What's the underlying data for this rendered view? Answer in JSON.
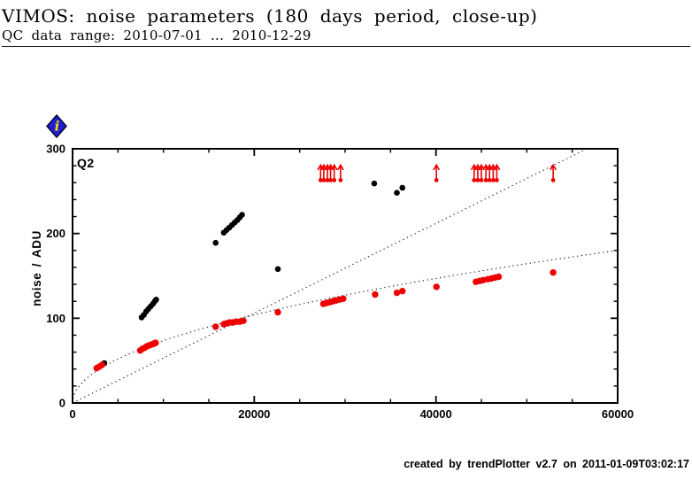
{
  "header": {
    "title": "VIMOS: noise parameters (180 days period, close-up)",
    "subtitle": "QC data range: 2010-07-01 ... 2010-12-29"
  },
  "icons": {
    "info": {
      "glyph": "i",
      "bg": "#2020d0",
      "fg": "#ffdd00"
    }
  },
  "footer": {
    "credit": "created by trendPlotter v2.7 on 2011-01-09T03:02:17"
  },
  "chart_data": {
    "type": "scatter",
    "panel_label": "Q2",
    "xlabel": "",
    "ylabel": "noise / ADU",
    "xlim": [
      0,
      60000
    ],
    "ylim": [
      0,
      300
    ],
    "x_major_ticks": [
      0,
      20000,
      40000,
      60000
    ],
    "x_minor_step": 5000,
    "y_major_ticks": [
      0,
      100,
      200,
      300
    ],
    "y_minor_step": 20,
    "grid": false,
    "colors": {
      "black_series": "#000000",
      "red_series": "#ee0000",
      "model_line": "#1a1a1a"
    },
    "series": [
      {
        "name": "noise-black",
        "color": "#000000",
        "marker": "dot",
        "points": [
          [
            3500,
            47
          ],
          [
            7600,
            101
          ],
          [
            7850,
            104
          ],
          [
            8100,
            108
          ],
          [
            8350,
            111
          ],
          [
            8600,
            114
          ],
          [
            8850,
            117
          ],
          [
            9050,
            120
          ],
          [
            9200,
            122
          ],
          [
            15750,
            189
          ],
          [
            16650,
            201
          ],
          [
            16950,
            204
          ],
          [
            17250,
            207
          ],
          [
            17550,
            210
          ],
          [
            17850,
            213
          ],
          [
            18150,
            216
          ],
          [
            18400,
            219
          ],
          [
            18650,
            222
          ],
          [
            22600,
            158
          ],
          [
            33200,
            259
          ],
          [
            35700,
            248
          ],
          [
            36300,
            254
          ]
        ]
      },
      {
        "name": "noise-red",
        "color": "#ee0000",
        "marker": "dot",
        "points": [
          [
            2650,
            41
          ],
          [
            2950,
            43
          ],
          [
            3250,
            45
          ],
          [
            7450,
            62
          ],
          [
            7700,
            64
          ],
          [
            7950,
            65
          ],
          [
            8200,
            67
          ],
          [
            8450,
            68
          ],
          [
            8700,
            69
          ],
          [
            8950,
            70
          ],
          [
            9150,
            71
          ],
          [
            15750,
            90
          ],
          [
            16650,
            93
          ],
          [
            16950,
            94
          ],
          [
            17300,
            95
          ],
          [
            17650,
            95
          ],
          [
            18000,
            96
          ],
          [
            18400,
            96
          ],
          [
            18800,
            97
          ],
          [
            22600,
            107
          ],
          [
            27600,
            117
          ],
          [
            27950,
            118
          ],
          [
            28300,
            119
          ],
          [
            28650,
            120
          ],
          [
            29000,
            121
          ],
          [
            29400,
            122
          ],
          [
            29800,
            123
          ],
          [
            33300,
            128
          ],
          [
            35700,
            130
          ],
          [
            36300,
            132
          ],
          [
            40050,
            137
          ],
          [
            44400,
            143
          ],
          [
            44800,
            144
          ],
          [
            45200,
            145
          ],
          [
            45700,
            146
          ],
          [
            46100,
            147
          ],
          [
            46500,
            148
          ],
          [
            46900,
            149
          ],
          [
            52900,
            154
          ]
        ]
      }
    ],
    "censored_points": {
      "name": "saturated-red-arrows",
      "color": "#ee0000",
      "y": 263,
      "x": [
        27300,
        27650,
        28050,
        28400,
        28800,
        29500,
        40050,
        44200,
        44600,
        45000,
        45500,
        45900,
        46300,
        46700,
        52900
      ]
    },
    "model_lines": [
      {
        "name": "linear-model",
        "type": "linear",
        "slope": 0.0053,
        "style": "dotted"
      },
      {
        "name": "sqrt-model",
        "type": "sqrt",
        "coef": 0.735,
        "style": "dotted"
      }
    ]
  }
}
